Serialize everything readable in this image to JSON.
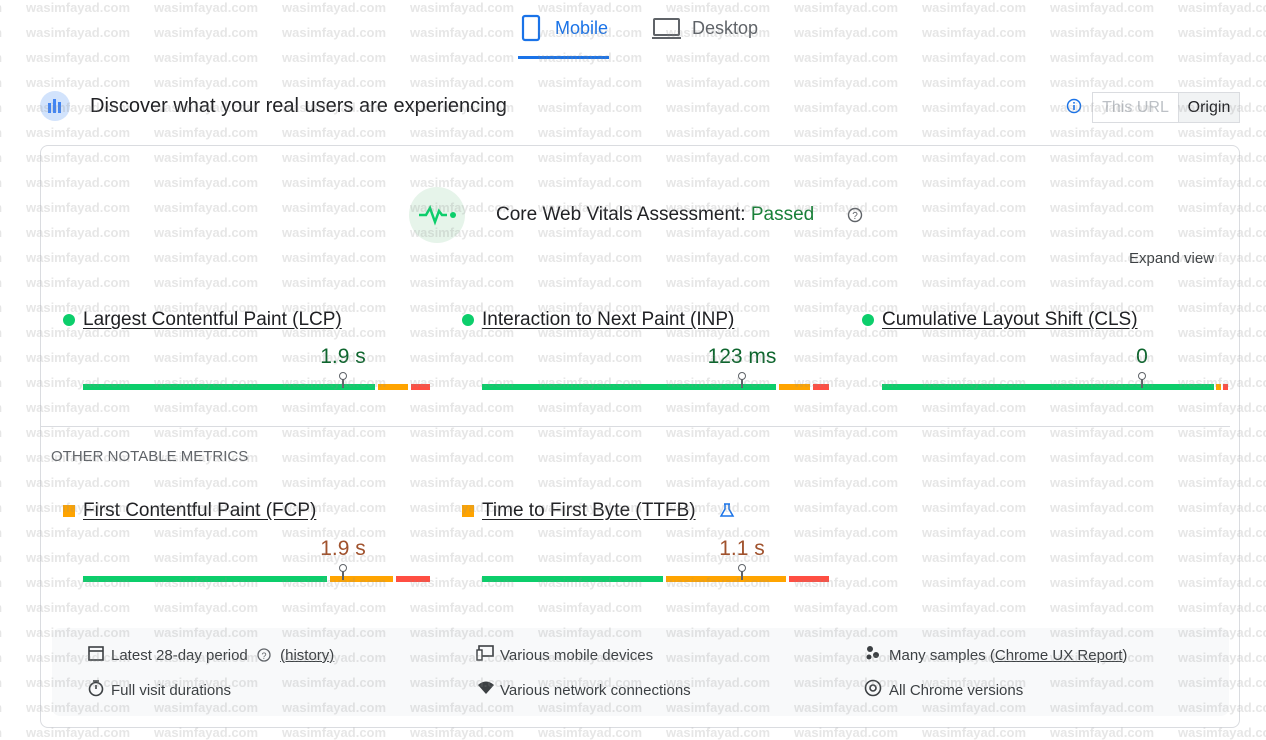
{
  "watermark": "wasimfayad.com",
  "tabs": [
    "Mobile",
    "Desktop"
  ],
  "header": {
    "title": "Discover what your real users are experiencing",
    "toggle": [
      "This URL",
      "Origin"
    ]
  },
  "assessment": {
    "label": "Core Web Vitals Assessment:",
    "status": "Passed"
  },
  "expand": "Expand view",
  "core_metrics": [
    {
      "name": "Largest Contentful Paint (LCP)",
      "value": "1.9 s"
    },
    {
      "name": "Interaction to Next Paint (INP)",
      "value": "123 ms"
    },
    {
      "name": "Cumulative Layout Shift (CLS)",
      "value": "0"
    }
  ],
  "other_heading": "OTHER NOTABLE METRICS",
  "other_metrics": [
    {
      "name": "First Contentful Paint (FCP)",
      "value": "1.9 s"
    },
    {
      "name": "Time to First Byte (TTFB)",
      "value": "1.1 s"
    }
  ],
  "footer": {
    "period": "Latest 28-day period",
    "history": "(history)",
    "devices": "Various mobile devices",
    "samples_prefix": "Many samples (",
    "samples_link": "Chrome UX Report",
    "samples_suffix": ")",
    "durations": "Full visit durations",
    "connections": "Various network connections",
    "versions": "All Chrome versions"
  }
}
